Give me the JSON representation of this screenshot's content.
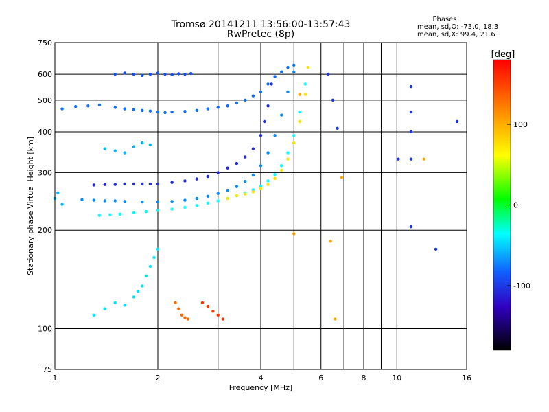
{
  "chart_data": {
    "type": "scatter",
    "title": "Tromsø 20141211 13:56:00-13:57:43",
    "subtitle": "RwPretec (8p)",
    "xlabel": "Frequency [MHz]",
    "ylabel": "Stationary phase Virtual Height [km]",
    "x_scale": "log",
    "y_scale": "log",
    "xlim": [
      1,
      16
    ],
    "ylim": [
      75,
      750
    ],
    "x_ticks": [
      1,
      2,
      4,
      6,
      8,
      10,
      16
    ],
    "x_minor_ticks": [
      3,
      5,
      7,
      9
    ],
    "y_ticks": [
      75,
      100,
      200,
      300,
      400,
      500,
      600,
      750
    ],
    "grid": true,
    "phases_box": {
      "title": "Phases",
      "line_o": "mean, sd,O: -73.0, 18.3",
      "line_x": "mean, sd,X:  99.4, 21.6"
    },
    "colorbar": {
      "label": "[deg]",
      "range": [
        -180,
        180
      ],
      "ticks": [
        100,
        0,
        -100
      ],
      "colormap": "rainbow"
    },
    "series": [
      {
        "x": [
          1.05,
          1.15,
          1.25,
          1.35,
          1.5,
          1.6,
          1.7,
          1.8,
          1.9,
          2.0,
          2.1,
          2.2,
          2.4,
          2.6,
          2.8,
          3.0,
          3.2,
          3.4,
          3.6,
          3.8,
          4.0,
          4.2,
          4.4,
          4.6,
          4.8,
          5.0
        ],
        "y": [
          470,
          478,
          480,
          483,
          475,
          470,
          468,
          465,
          463,
          460,
          458,
          460,
          462,
          465,
          470,
          475,
          480,
          490,
          500,
          515,
          530,
          560,
          590,
          610,
          630,
          640
        ],
        "phase": -95
      },
      {
        "x": [
          1.5,
          1.6,
          1.7,
          1.8,
          1.9,
          2.0,
          2.1,
          2.2,
          2.3,
          2.4,
          2.5
        ],
        "y": [
          600,
          605,
          600,
          595,
          600,
          605,
          600,
          598,
          602,
          600,
          603
        ],
        "phase": -110
      },
      {
        "x": [
          1.3,
          1.4,
          1.5,
          1.6,
          1.7,
          1.8,
          1.9,
          2.0,
          2.2,
          2.4,
          2.6,
          2.8,
          3.0,
          3.2,
          3.4,
          3.6,
          3.8,
          4.0,
          4.1,
          4.2,
          4.3
        ],
        "y": [
          275,
          276,
          276,
          277,
          277,
          277,
          277,
          277,
          280,
          283,
          287,
          292,
          300,
          310,
          320,
          335,
          355,
          390,
          430,
          480,
          560
        ],
        "phase": -125
      },
      {
        "x": [
          1.2,
          1.3,
          1.4,
          1.5,
          1.6,
          1.8,
          2.0,
          2.2,
          2.4,
          2.6,
          2.8,
          3.0,
          3.2,
          3.4,
          3.6,
          3.8,
          4.0,
          4.2,
          4.4,
          4.6,
          4.8,
          5.0
        ],
        "y": [
          248,
          247,
          246,
          246,
          245,
          244,
          244,
          245,
          247,
          250,
          254,
          259,
          265,
          272,
          282,
          295,
          315,
          345,
          390,
          450,
          530,
          610
        ],
        "phase": -80
      },
      {
        "x": [
          1.35,
          1.45,
          1.55,
          1.7,
          1.85,
          2.0,
          2.2,
          2.4,
          2.6,
          2.8,
          3.0,
          3.2,
          3.4,
          3.6,
          3.8,
          4.0,
          4.2,
          4.4,
          4.6,
          4.8,
          5.0,
          5.2,
          5.4
        ],
        "y": [
          222,
          223,
          224,
          226,
          228,
          230,
          232,
          235,
          238,
          242,
          246,
          250,
          255,
          260,
          266,
          273,
          283,
          296,
          315,
          345,
          390,
          460,
          560
        ],
        "phase": -30
      },
      {
        "x": [
          3.2,
          3.4,
          3.6,
          3.8,
          4.0,
          4.2,
          4.4,
          4.6,
          4.8,
          5.0,
          5.2,
          5.4,
          5.5
        ],
        "y": [
          250,
          255,
          258,
          262,
          268,
          276,
          288,
          305,
          330,
          370,
          430,
          520,
          630
        ],
        "phase": 110
      },
      {
        "x": [
          1.0,
          1.02,
          1.05,
          1.4,
          1.5,
          1.6,
          1.7,
          1.8,
          1.9
        ],
        "y": [
          250,
          260,
          240,
          355,
          350,
          345,
          360,
          370,
          365
        ],
        "phase": -60
      },
      {
        "x": [
          1.3,
          1.4,
          1.5,
          1.6,
          1.7,
          1.75,
          1.8,
          1.85,
          1.9,
          1.95,
          2.0
        ],
        "y": [
          110,
          115,
          120,
          118,
          125,
          130,
          135,
          145,
          155,
          165,
          175
        ],
        "phase": -40
      },
      {
        "x": [
          2.25,
          2.3,
          2.35,
          2.4,
          2.45
        ],
        "y": [
          120,
          115,
          110,
          108,
          107
        ],
        "phase": 150
      },
      {
        "x": [
          2.7,
          2.8,
          2.9,
          3.0,
          3.1
        ],
        "y": [
          120,
          117,
          113,
          110,
          107
        ],
        "phase": 165
      },
      {
        "x": [
          6.3,
          6.5,
          6.7,
          10.1,
          11.0,
          11.0,
          11.0,
          11.0,
          11.0,
          13.0,
          15.0
        ],
        "y": [
          600,
          500,
          410,
          330,
          550,
          460,
          400,
          330,
          205,
          175,
          430
        ],
        "phase": -120
      },
      {
        "x": [
          5.0,
          5.2,
          6.4,
          6.6,
          6.9,
          12.0
        ],
        "y": [
          195,
          520,
          185,
          107,
          290,
          330
        ],
        "phase": 130
      }
    ]
  }
}
